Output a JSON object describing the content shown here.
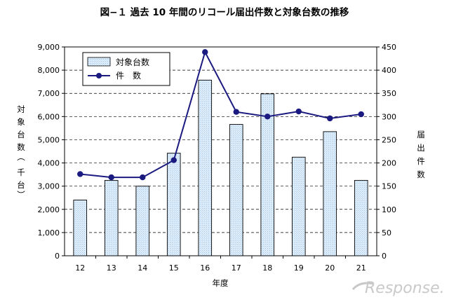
{
  "chart_data": {
    "type": "bar",
    "title": "図−１ 過去 10 年間のリコール届出件数と対象台数の推移",
    "xlabel": "年度",
    "ylabel_left": "対象台数（千台）",
    "ylabel_right": "届出件数",
    "categories": [
      "12",
      "13",
      "14",
      "15",
      "16",
      "17",
      "18",
      "19",
      "20",
      "21"
    ],
    "ylim_left": [
      0,
      9000
    ],
    "ylim_right": [
      0,
      450
    ],
    "yticks_left": [
      "0",
      "1,000",
      "2,000",
      "3,000",
      "4,000",
      "5,000",
      "6,000",
      "7,000",
      "8,000",
      "9,000"
    ],
    "yticks_right": [
      "0",
      "50",
      "100",
      "150",
      "200",
      "250",
      "300",
      "350",
      "400",
      "450"
    ],
    "grid": "horizontal dashed",
    "legend_position": "top-left",
    "series": [
      {
        "name": "対象台数",
        "type": "bar",
        "axis": "left",
        "values": [
          2400,
          3250,
          3000,
          4420,
          7570,
          5660,
          6980,
          4250,
          5350,
          3250
        ],
        "color": "#d6eaf8",
        "edge": "#000000"
      },
      {
        "name": "件　数",
        "type": "line",
        "axis": "right",
        "values": [
          176,
          169,
          169,
          206,
          439,
          310,
          300,
          311,
          296,
          305
        ],
        "color": "#1a1a80"
      }
    ]
  },
  "watermark": {
    "text": "Response."
  }
}
